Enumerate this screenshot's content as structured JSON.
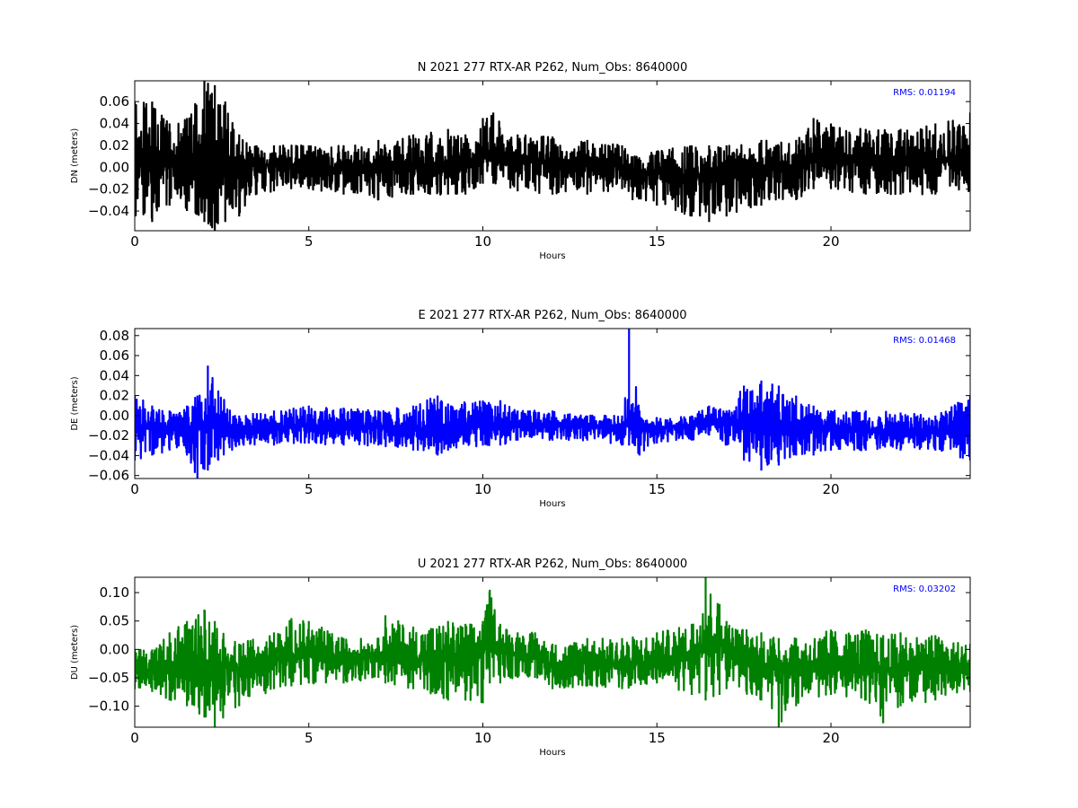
{
  "figure": {
    "background": "#ffffff"
  },
  "chart_data": [
    {
      "type": "line",
      "title": "N 2021 277 RTX-AR  P262, Num_Obs: 8640000",
      "xlabel": "Hours",
      "ylabel": "DN (meters)",
      "xlim": [
        0,
        24
      ],
      "ylim": [
        -0.058,
        0.079
      ],
      "xticks": [
        0,
        5,
        10,
        15,
        20
      ],
      "yticks": [
        -0.04,
        -0.02,
        0.0,
        0.02,
        0.04,
        0.06
      ],
      "ytick_labels": [
        "−0.04",
        "−0.02",
        "0.00",
        "0.02",
        "0.04",
        "0.06"
      ],
      "grid": false,
      "color": "#000000",
      "annotation": {
        "label": "RMS:",
        "value": "0.01194",
        "position": "top-right"
      },
      "series": [
        {
          "color": "#000000",
          "envelope": {
            "x": [
              0,
              0.5,
              1,
              1.5,
              2,
              2.3,
              2.6,
              3,
              3.5,
              4,
              5,
              6,
              7,
              8,
              9,
              9.5,
              10,
              10.3,
              11,
              12,
              13,
              14,
              14.3,
              15,
              16,
              16.5,
              17,
              18,
              19,
              19.5,
              20,
              21,
              22,
              23,
              24
            ],
            "center": [
              0.005,
              0.005,
              0.005,
              0.005,
              0.008,
              0.01,
              0.006,
              0.0,
              0.002,
              0.002,
              0.0,
              -0.002,
              -0.002,
              0.0,
              0.0,
              0.002,
              0.01,
              0.012,
              0.005,
              0.005,
              0.003,
              0.002,
              -0.005,
              -0.005,
              -0.008,
              -0.01,
              -0.005,
              -0.002,
              0.0,
              0.01,
              0.012,
              0.008,
              0.005,
              0.005,
              0.01
            ],
            "upper": [
              0.06,
              0.06,
              0.04,
              0.045,
              0.079,
              0.075,
              0.06,
              0.03,
              0.02,
              0.02,
              0.02,
              0.02,
              0.025,
              0.03,
              0.035,
              0.03,
              0.045,
              0.05,
              0.03,
              0.028,
              0.025,
              0.02,
              0.01,
              0.015,
              0.02,
              0.02,
              0.02,
              0.025,
              0.025,
              0.045,
              0.04,
              0.035,
              0.035,
              0.04,
              0.05
            ],
            "lower": [
              -0.045,
              -0.05,
              -0.035,
              -0.04,
              -0.05,
              -0.058,
              -0.05,
              -0.045,
              -0.025,
              -0.022,
              -0.02,
              -0.025,
              -0.03,
              -0.025,
              -0.025,
              -0.025,
              -0.015,
              -0.015,
              -0.022,
              -0.025,
              -0.025,
              -0.02,
              -0.03,
              -0.035,
              -0.045,
              -0.05,
              -0.045,
              -0.035,
              -0.03,
              -0.02,
              -0.02,
              -0.025,
              -0.025,
              -0.025,
              -0.022
            ]
          }
        }
      ]
    },
    {
      "type": "line",
      "title": "E 2021 277 RTX-AR  P262, Num_Obs: 8640000",
      "xlabel": "Hours",
      "ylabel": "DE (meters)",
      "xlim": [
        0,
        24
      ],
      "ylim": [
        -0.063,
        0.087
      ],
      "xticks": [
        0,
        5,
        10,
        15,
        20
      ],
      "yticks": [
        -0.06,
        -0.04,
        -0.02,
        0.0,
        0.02,
        0.04,
        0.06,
        0.08
      ],
      "ytick_labels": [
        "−0.06",
        "−0.04",
        "−0.02",
        "0.00",
        "0.02",
        "0.04",
        "0.06",
        "0.08"
      ],
      "grid": false,
      "color": "#0000ff",
      "annotation": {
        "label": "RMS:",
        "value": "0.01468",
        "position": "top-right"
      },
      "series": [
        {
          "color": "#0000ff",
          "envelope": {
            "x": [
              0,
              0.5,
              1,
              1.5,
              1.8,
              2.1,
              2.4,
              3,
              4,
              5,
              6,
              7,
              8,
              8.7,
              9,
              10,
              10.5,
              11,
              12,
              13,
              14,
              14.2,
              14.5,
              15,
              16,
              16.5,
              17,
              17.5,
              18,
              18.5,
              19,
              19.5,
              20,
              21,
              22,
              23,
              24
            ],
            "center": [
              -0.012,
              -0.012,
              -0.012,
              -0.012,
              -0.01,
              -0.01,
              -0.012,
              -0.015,
              -0.012,
              -0.01,
              -0.012,
              -0.012,
              -0.015,
              -0.015,
              -0.012,
              -0.008,
              -0.008,
              -0.01,
              -0.008,
              -0.01,
              -0.012,
              -0.01,
              -0.012,
              -0.012,
              -0.01,
              -0.005,
              -0.008,
              -0.01,
              -0.012,
              -0.012,
              -0.01,
              -0.012,
              -0.012,
              -0.015,
              -0.015,
              -0.015,
              -0.01
            ],
            "upper": [
              0.02,
              0.01,
              0.005,
              0.01,
              0.02,
              0.05,
              0.025,
              0.0,
              0.005,
              0.01,
              0.008,
              0.005,
              0.01,
              0.02,
              0.012,
              0.015,
              0.015,
              0.005,
              0.005,
              0.0,
              0.0,
              0.087,
              0.005,
              -0.002,
              0.0,
              0.01,
              0.005,
              0.03,
              0.035,
              0.03,
              0.02,
              0.01,
              0.005,
              0.005,
              0.003,
              0.0,
              0.02
            ],
            "lower": [
              -0.045,
              -0.04,
              -0.035,
              -0.04,
              -0.063,
              -0.055,
              -0.045,
              -0.03,
              -0.03,
              -0.028,
              -0.03,
              -0.03,
              -0.035,
              -0.04,
              -0.035,
              -0.03,
              -0.03,
              -0.025,
              -0.025,
              -0.025,
              -0.03,
              -0.03,
              -0.04,
              -0.028,
              -0.025,
              -0.02,
              -0.03,
              -0.045,
              -0.055,
              -0.05,
              -0.04,
              -0.04,
              -0.035,
              -0.035,
              -0.035,
              -0.035,
              -0.045
            ]
          }
        }
      ]
    },
    {
      "type": "line",
      "title": "U 2021 277 RTX-AR  P262, Num_Obs: 8640000",
      "xlabel": "Hours",
      "ylabel": "DU (meters)",
      "xlim": [
        0,
        24
      ],
      "ylim": [
        -0.137,
        0.127
      ],
      "xticks": [
        0,
        5,
        10,
        15,
        20
      ],
      "yticks": [
        -0.1,
        -0.05,
        0.0,
        0.05,
        0.1
      ],
      "ytick_labels": [
        "−0.10",
        "−0.05",
        "0.00",
        "0.05",
        "0.10"
      ],
      "grid": false,
      "color": "#008000",
      "annotation": {
        "label": "RMS:",
        "value": "0.03202",
        "position": "top-right"
      },
      "series": [
        {
          "color": "#008000",
          "envelope": {
            "x": [
              0,
              0.5,
              1,
              1.5,
              2,
              2.3,
              3,
              4,
              4.5,
              5,
              6,
              7,
              7.2,
              8,
              9,
              9.5,
              10,
              10.2,
              10.5,
              11,
              11.5,
              12,
              13,
              14,
              15,
              16,
              16.4,
              16.8,
              17,
              18,
              18.5,
              19,
              20,
              21,
              21.5,
              22,
              23,
              24
            ],
            "center": [
              -0.04,
              -0.035,
              -0.035,
              -0.03,
              -0.03,
              -0.03,
              -0.035,
              -0.02,
              -0.01,
              -0.01,
              -0.015,
              -0.01,
              0.0,
              -0.02,
              -0.015,
              -0.01,
              0.0,
              0.02,
              0.0,
              -0.01,
              -0.01,
              -0.03,
              -0.02,
              -0.03,
              -0.02,
              -0.01,
              0.01,
              0.02,
              -0.01,
              -0.03,
              -0.03,
              -0.035,
              -0.025,
              -0.03,
              -0.035,
              -0.03,
              -0.03,
              -0.035
            ],
            "upper": [
              0.0,
              0.0,
              0.03,
              0.05,
              0.07,
              0.05,
              0.01,
              0.03,
              0.055,
              0.05,
              0.02,
              0.02,
              0.06,
              0.04,
              0.05,
              0.045,
              0.05,
              0.105,
              0.045,
              0.03,
              0.03,
              0.01,
              0.02,
              0.02,
              0.03,
              0.045,
              0.127,
              0.08,
              0.05,
              0.03,
              0.02,
              0.02,
              0.035,
              0.035,
              0.025,
              0.03,
              0.025,
              0.01
            ],
            "lower": [
              -0.07,
              -0.075,
              -0.09,
              -0.1,
              -0.12,
              -0.137,
              -0.1,
              -0.07,
              -0.065,
              -0.06,
              -0.06,
              -0.05,
              -0.06,
              -0.07,
              -0.09,
              -0.09,
              -0.095,
              -0.06,
              -0.06,
              -0.05,
              -0.05,
              -0.07,
              -0.065,
              -0.07,
              -0.06,
              -0.08,
              -0.09,
              -0.08,
              -0.07,
              -0.09,
              -0.137,
              -0.1,
              -0.08,
              -0.09,
              -0.13,
              -0.1,
              -0.09,
              -0.075
            ]
          }
        }
      ]
    }
  ]
}
